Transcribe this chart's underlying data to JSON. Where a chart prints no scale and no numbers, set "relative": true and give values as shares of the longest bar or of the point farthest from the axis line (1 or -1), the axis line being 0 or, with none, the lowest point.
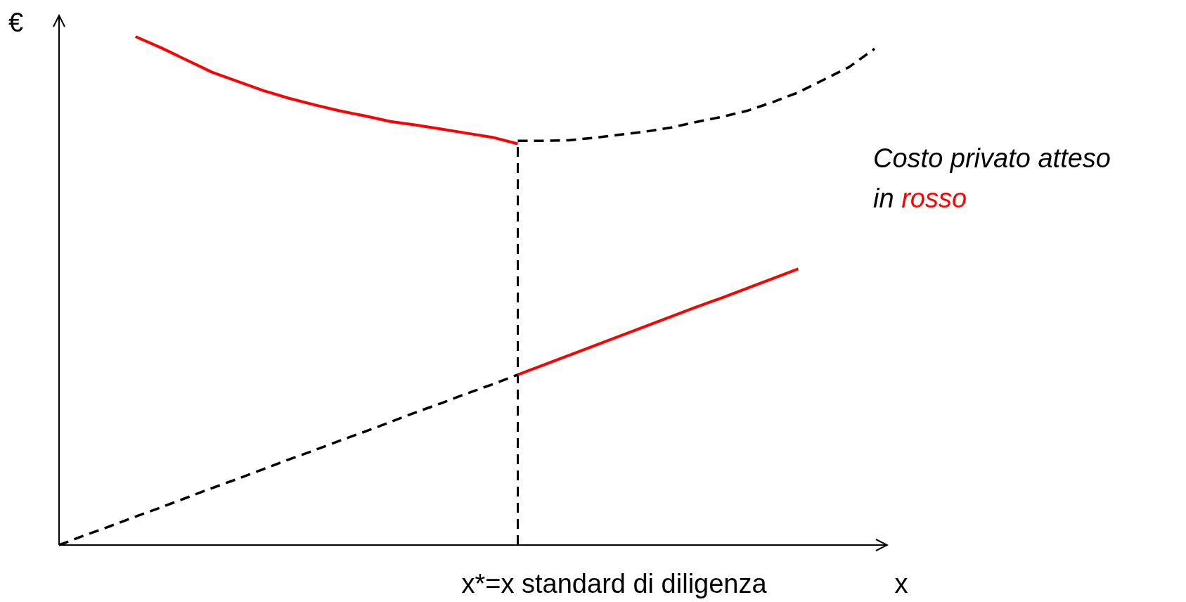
{
  "chart_data": {
    "type": "line",
    "relative": true,
    "xlabel": "x",
    "ylabel": "€",
    "categories": [
      null,
      null,
      null,
      null,
      null,
      null,
      null,
      null,
      null,
      null,
      null,
      null,
      null,
      null,
      null,
      null,
      null,
      null,
      null,
      null,
      null,
      null,
      null,
      null,
      null,
      null,
      null,
      null,
      null,
      null,
      null,
      null,
      null
    ],
    "annotations": [
      "x*=x standard di diligenza",
      "Costo privato atteso",
      "in rosso"
    ],
    "series": [
      {
        "color": "#000000",
        "line_style": "dashed",
        "values": [
          null,
          null,
          null,
          null,
          null,
          null,
          null,
          null,
          null,
          null,
          null,
          null,
          null,
          null,
          null,
          null,
          null,
          null,
          0.795,
          0.795,
          0.796,
          0.801,
          0.807,
          0.813,
          0.821,
          0.832,
          0.842,
          0.854,
          0.871,
          0.89,
          0.915,
          0.94,
          0.976
        ]
      },
      {
        "color": "#ff0000",
        "line_style": "solid",
        "values": [
          null,
          null,
          null,
          1.0,
          0.978,
          0.954,
          0.93,
          0.912,
          0.894,
          0.879,
          0.866,
          0.854,
          0.844,
          0.833,
          0.826,
          0.818,
          0.81,
          0.802,
          0.789,
          null,
          null,
          null,
          null,
          null,
          null,
          null,
          null,
          null,
          null,
          null,
          null,
          null,
          null
        ]
      },
      {
        "color": "#000000",
        "line_style": "dashed",
        "values": [
          0,
          0.019,
          0.037,
          0.056,
          0.074,
          0.093,
          0.112,
          0.13,
          0.149,
          0.168,
          0.186,
          0.205,
          0.223,
          0.242,
          0.261,
          0.279,
          0.298,
          0.316,
          0.335,
          null,
          null,
          null,
          null,
          null,
          null,
          null,
          null,
          null,
          null,
          null,
          null,
          null,
          null
        ]
      },
      {
        "color": "#ff0000",
        "line_style": "solid",
        "values": [
          null,
          null,
          null,
          null,
          null,
          null,
          null,
          null,
          null,
          null,
          null,
          null,
          null,
          null,
          null,
          null,
          null,
          null,
          0.335,
          0.354,
          0.373,
          0.392,
          0.411,
          0.43,
          0.449,
          0.468,
          0.486,
          0.505,
          0.524,
          0.543,
          null,
          null,
          null
        ]
      }
    ]
  }
}
